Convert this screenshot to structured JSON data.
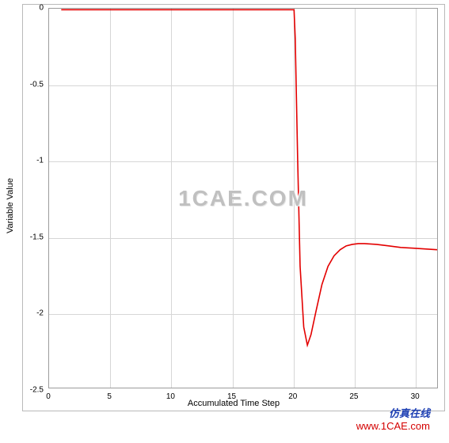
{
  "chart": {
    "type": "line",
    "xlabel": "Accumulated Time Step",
    "ylabel": "Variable Value",
    "xlim": [
      0,
      32
    ],
    "ylim": [
      -2.5,
      0
    ],
    "xtick_step": 5,
    "ytick_step": 0.5,
    "xticks": [
      {
        "v": 0,
        "label": "0"
      },
      {
        "v": 5,
        "label": "5"
      },
      {
        "v": 10,
        "label": "10"
      },
      {
        "v": 15,
        "label": "15"
      },
      {
        "v": 20,
        "label": "20"
      },
      {
        "v": 25,
        "label": "25"
      }
    ],
    "yticks": [
      {
        "v": 0,
        "label": "0"
      },
      {
        "v": -0.5,
        "label": "-0.5"
      },
      {
        "v": -1,
        "label": "-1"
      },
      {
        "v": -1.5,
        "label": "-1.5"
      },
      {
        "v": -2,
        "label": "-2"
      },
      {
        "v": -2.5,
        "label": "-2.5"
      }
    ],
    "overflow_x_label": "30",
    "grid_color": "#d6d6d6",
    "axis_color": "#9c9c9c",
    "background_color": "#ffffff",
    "series": {
      "color": "#e30000",
      "line_width": 1.6,
      "points": [
        [
          1,
          -0.007
        ],
        [
          2,
          -0.007
        ],
        [
          3,
          -0.007
        ],
        [
          4,
          -0.007
        ],
        [
          5,
          -0.007
        ],
        [
          6,
          -0.007
        ],
        [
          7,
          -0.007
        ],
        [
          8,
          -0.007
        ],
        [
          9,
          -0.007
        ],
        [
          10,
          -0.007
        ],
        [
          11,
          -0.007
        ],
        [
          12,
          -0.007
        ],
        [
          13,
          -0.007
        ],
        [
          14,
          -0.007
        ],
        [
          15,
          -0.007
        ],
        [
          16,
          -0.007
        ],
        [
          17,
          -0.007
        ],
        [
          18,
          -0.007
        ],
        [
          19,
          -0.007
        ],
        [
          20,
          -0.007
        ],
        [
          20.2,
          -0.007
        ],
        [
          20.3,
          -0.2
        ],
        [
          20.5,
          -1.0
        ],
        [
          20.7,
          -1.7
        ],
        [
          21.0,
          -2.1
        ],
        [
          21.3,
          -2.22
        ],
        [
          21.6,
          -2.15
        ],
        [
          22.0,
          -2.0
        ],
        [
          22.5,
          -1.82
        ],
        [
          23.0,
          -1.7
        ],
        [
          23.5,
          -1.63
        ],
        [
          24.0,
          -1.59
        ],
        [
          24.5,
          -1.565
        ],
        [
          25.0,
          -1.555
        ],
        [
          25.5,
          -1.55
        ],
        [
          26.0,
          -1.55
        ],
        [
          27.0,
          -1.555
        ],
        [
          28.0,
          -1.565
        ],
        [
          29.0,
          -1.575
        ],
        [
          30.0,
          -1.58
        ],
        [
          31.0,
          -1.585
        ],
        [
          32.0,
          -1.59
        ]
      ]
    },
    "tick_fontsize": 10,
    "label_fontsize": 11
  },
  "watermark_center": "1CAE.COM",
  "footer": {
    "line1": "仿真在线",
    "line2": "www.1CAE.com"
  }
}
